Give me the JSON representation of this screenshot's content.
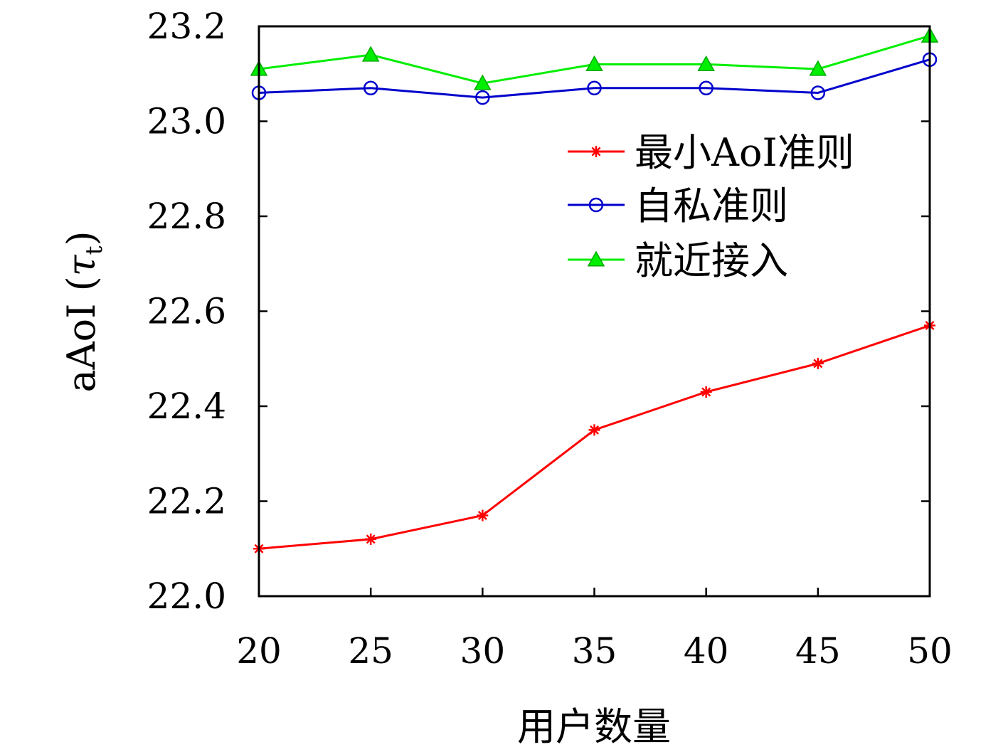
{
  "chart_data": {
    "type": "line",
    "xlabel": "用户数量",
    "ylabel_main": "aAoI (",
    "ylabel_tau": "τ",
    "ylabel_sub": "t",
    "ylabel_close": ")",
    "x": [
      20,
      25,
      30,
      35,
      40,
      45,
      50
    ],
    "xticks": [
      "20",
      "25",
      "30",
      "35",
      "40",
      "45",
      "50"
    ],
    "ylim": [
      22.0,
      23.2
    ],
    "yticks": [
      "22.0",
      "22.2",
      "22.4",
      "22.6",
      "22.8",
      "23.0",
      "23.2"
    ],
    "legend_position": "upper-right",
    "series": [
      {
        "name": "最小AoI准则",
        "color": "#ff0000",
        "marker": "star",
        "values": [
          22.1,
          22.12,
          22.17,
          22.35,
          22.43,
          22.49,
          22.57
        ]
      },
      {
        "name": "自私准则",
        "color": "#0000cc",
        "marker": "circle",
        "values": [
          23.06,
          23.07,
          23.05,
          23.07,
          23.07,
          23.06,
          23.13
        ]
      },
      {
        "name": "就近接入",
        "color": "#00ee00",
        "marker": "triangle",
        "values": [
          23.11,
          23.14,
          23.08,
          23.12,
          23.12,
          23.11,
          23.18
        ]
      }
    ]
  }
}
